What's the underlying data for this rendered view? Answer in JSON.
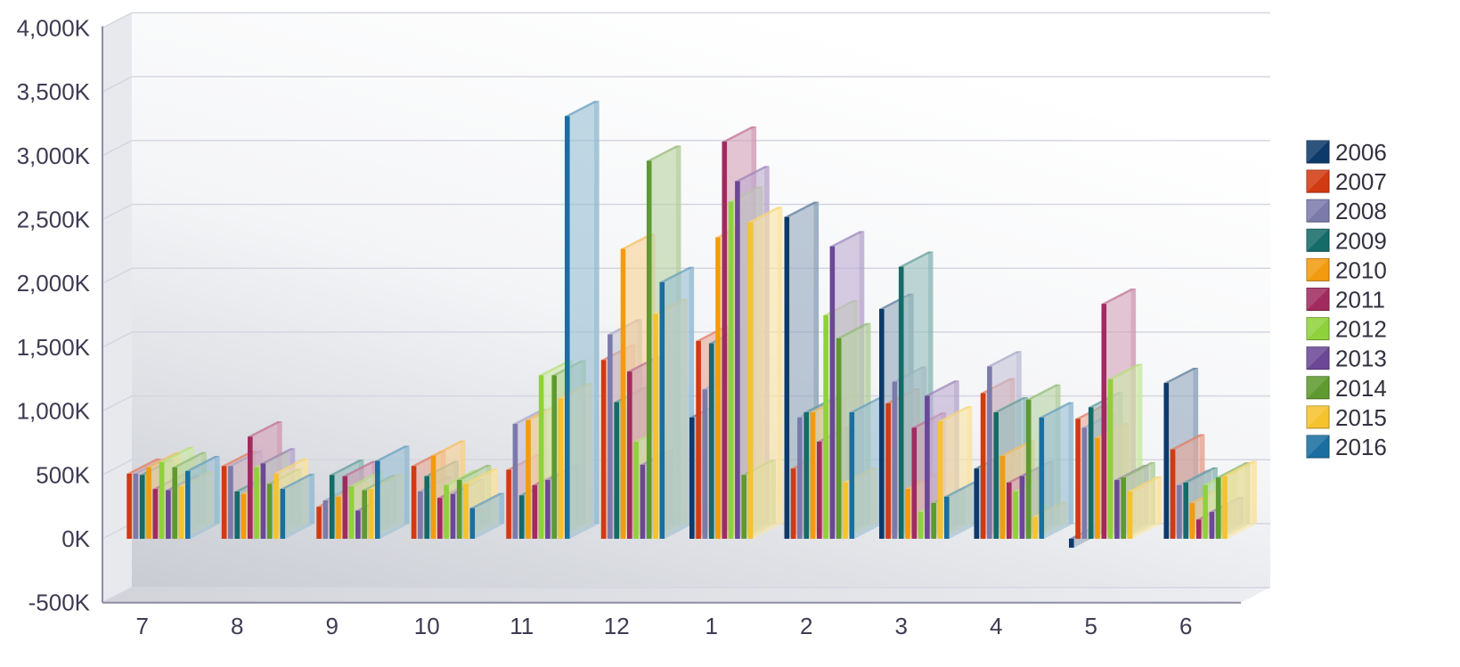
{
  "chart_data": {
    "type": "bar",
    "style": "3d-clustered",
    "categories": [
      "7",
      "8",
      "9",
      "10",
      "11",
      "12",
      "1",
      "2",
      "3",
      "4",
      "5",
      "6"
    ],
    "ylim": [
      -500,
      4000
    ],
    "yticks": [
      -500,
      0,
      500,
      1000,
      1500,
      2000,
      2500,
      3000,
      3500,
      4000
    ],
    "ytick_labels": [
      "-500K",
      "0K",
      "500K",
      "1,000K",
      "1,500K",
      "2,000K",
      "2,500K",
      "3,000K",
      "3,500K",
      "4,000K"
    ],
    "grid": true,
    "legend_position": "right",
    "series": [
      {
        "name": "2006",
        "color": "#0d3a6b",
        "values": [
          null,
          null,
          null,
          null,
          null,
          null,
          950,
          2520,
          1800,
          550,
          -70,
          1220
        ]
      },
      {
        "name": "2007",
        "color": "#d13a12",
        "values": [
          510,
          570,
          250,
          570,
          540,
          1400,
          1550,
          550,
          1060,
          1140,
          940,
          700
        ]
      },
      {
        "name": "2008",
        "color": "#7b7aab",
        "values": [
          510,
          570,
          300,
          370,
          900,
          1600,
          1170,
          950,
          1230,
          1350,
          870,
          420
        ]
      },
      {
        "name": "2009",
        "color": "#146b68",
        "values": [
          500,
          370,
          500,
          490,
          340,
          1070,
          1530,
          990,
          2130,
          990,
          1030,
          440
        ]
      },
      {
        "name": "2010",
        "color": "#f39b0e",
        "values": [
          560,
          350,
          330,
          650,
          930,
          2270,
          2360,
          990,
          390,
          650,
          790,
          280
        ]
      },
      {
        "name": "2011",
        "color": "#a02b5e",
        "values": [
          390,
          800,
          490,
          320,
          420,
          1310,
          3110,
          760,
          870,
          440,
          1840,
          150
        ]
      },
      {
        "name": "2012",
        "color": "#8fd13b",
        "values": [
          600,
          560,
          410,
          420,
          1280,
          760,
          2640,
          1750,
          210,
          370,
          1250,
          420
        ]
      },
      {
        "name": "2013",
        "color": "#6b4796",
        "values": [
          380,
          590,
          220,
          350,
          460,
          580,
          2800,
          2290,
          1120,
          490,
          460,
          210
        ]
      },
      {
        "name": "2014",
        "color": "#5e9a2f",
        "values": [
          560,
          430,
          380,
          460,
          1280,
          2960,
          500,
          1570,
          280,
          1090,
          480,
          480
        ]
      },
      {
        "name": "2015",
        "color": "#f6c22e",
        "values": [
          410,
          510,
          390,
          430,
          1100,
          1760,
          2480,
          440,
          920,
          170,
          370,
          490
        ]
      },
      {
        "name": "2016",
        "color": "#1a6ea0",
        "values": [
          530,
          390,
          610,
          240,
          3310,
          2010,
          null,
          990,
          330,
          950,
          null,
          null
        ]
      }
    ]
  }
}
